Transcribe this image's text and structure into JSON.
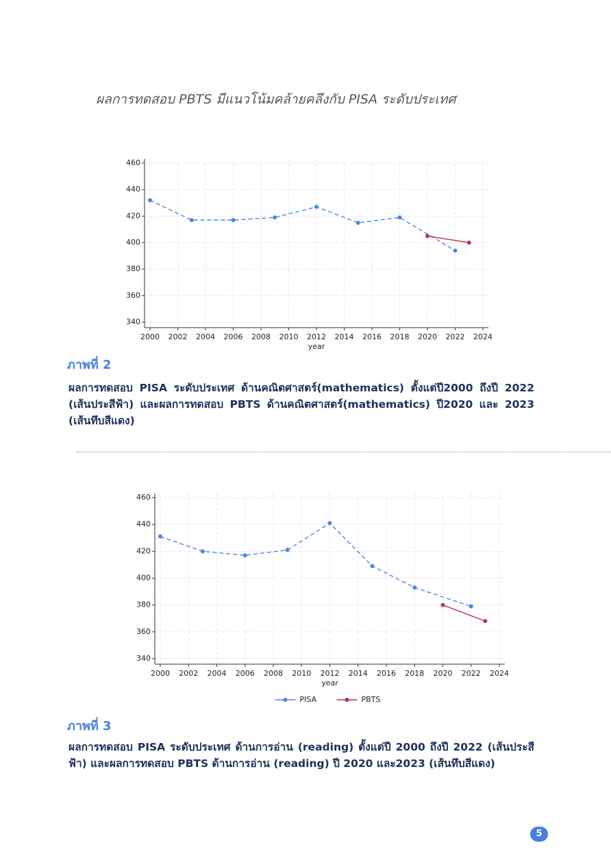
{
  "heading": "ผลการทดสอบ PBTS มีแนวโน้มคล้ายคลึงกับ PISA ระดับประเทศ",
  "chart_data": [
    {
      "type": "line",
      "xlabel": "year",
      "grid": true,
      "xlim": [
        2000,
        2024
      ],
      "xticks": [
        2000,
        2002,
        2004,
        2006,
        2008,
        2010,
        2012,
        2014,
        2016,
        2018,
        2020,
        2022,
        2024
      ],
      "ylim": [
        340,
        460
      ],
      "yticks": [
        340,
        360,
        380,
        400,
        420,
        440,
        460
      ],
      "series": [
        {
          "color": "#4a86e0",
          "line_style": "dashed",
          "x": [
            2000,
            2003,
            2006,
            2009,
            2012,
            2015,
            2018,
            2022
          ],
          "values": [
            432,
            417,
            417,
            419,
            427,
            415,
            419,
            394
          ]
        },
        {
          "color": "#b8325a",
          "line_style": "solid",
          "x": [
            2020,
            2023
          ],
          "values": [
            405,
            400
          ]
        }
      ]
    },
    {
      "type": "line",
      "xlabel": "year",
      "grid": true,
      "legend": "bottom",
      "xlim": [
        2000,
        2024
      ],
      "xticks": [
        2000,
        2002,
        2004,
        2006,
        2008,
        2010,
        2012,
        2014,
        2016,
        2018,
        2020,
        2022,
        2024
      ],
      "ylim": [
        340,
        460
      ],
      "yticks": [
        340,
        360,
        380,
        400,
        420,
        440,
        460
      ],
      "series": [
        {
          "name": "PISA",
          "color": "#4a86e0",
          "line_style": "dashed",
          "x": [
            2000,
            2003,
            2006,
            2009,
            2012,
            2015,
            2018,
            2022
          ],
          "values": [
            431,
            420,
            417,
            421,
            441,
            409,
            393,
            379
          ]
        },
        {
          "name": "PBTS",
          "color": "#b8325a",
          "line_style": "solid",
          "x": [
            2020,
            2023
          ],
          "values": [
            380,
            368
          ]
        }
      ]
    }
  ],
  "figures": [
    {
      "label": "ภาพที่ 2",
      "caption": "ผลการทดสอบ PISA ระดับประเทศ ด้านคณิตศาสตร์(mathematics) ตั้งแต่ปี2000 ถึงปี 2022 (เส้นประสีฟ้า) และผลการทดสอบ PBTS ด้านคณิตศาสตร์(mathematics) ปี2020 และ 2023 (เส้นทึบสีแดง)"
    },
    {
      "label": "ภาพที่ 3",
      "caption": "ผลการทดสอบ PISA ระดับประเทศ ด้านการอ่าน (reading) ตั้งแต่ปี 2000 ถึงปี 2022 (เส้นประสีฟ้า) และผลการทดสอบ PBTS ด้านการอ่าน (reading) ปี 2020 และ2023 (เส้นทึบสีแดง)"
    }
  ],
  "page_number": 5
}
